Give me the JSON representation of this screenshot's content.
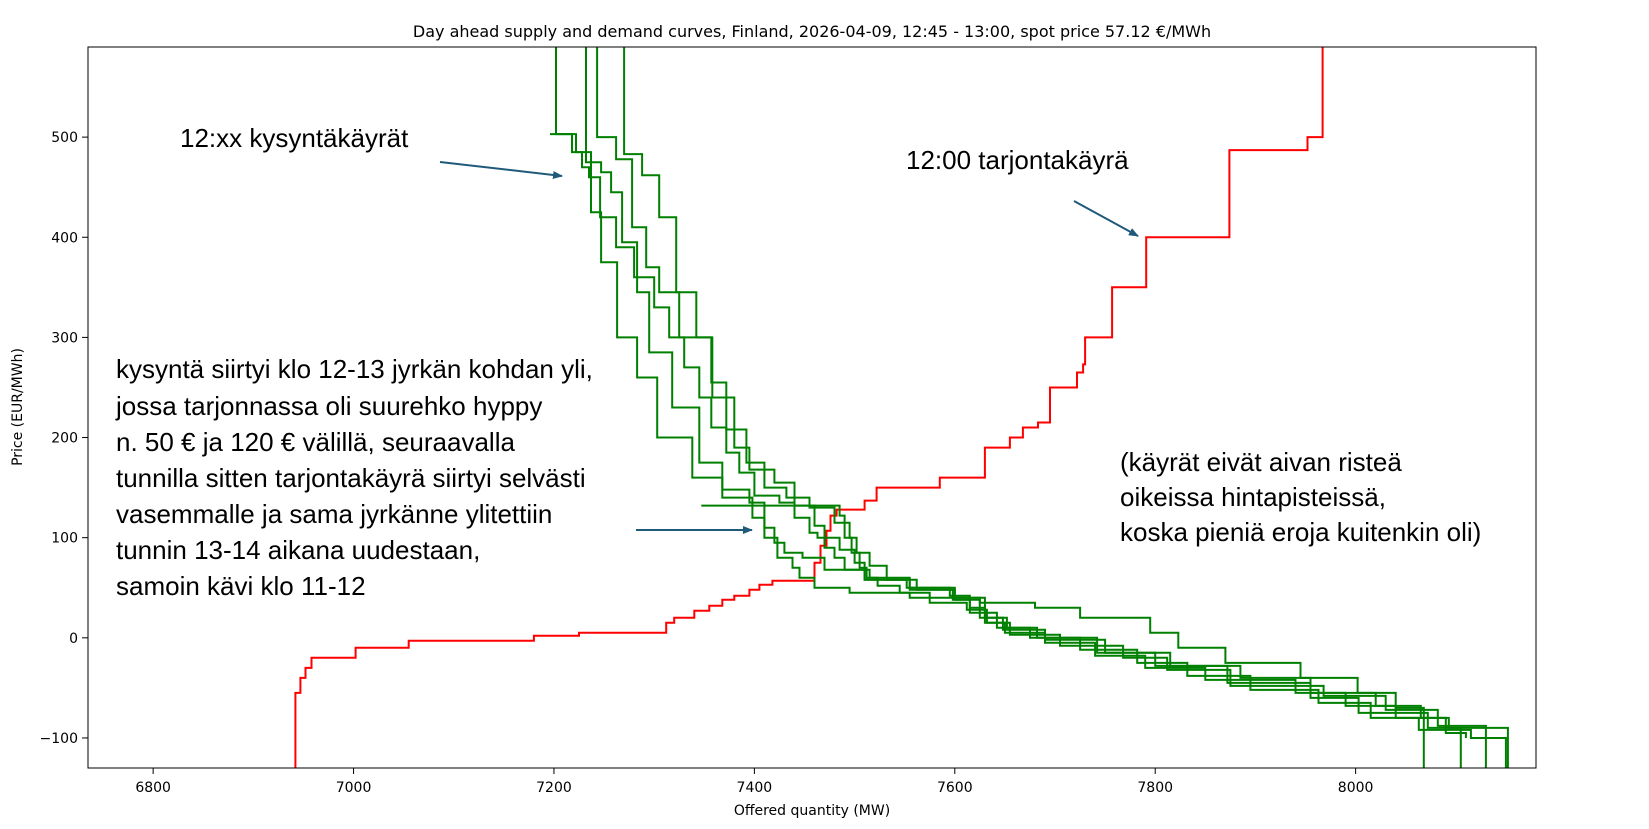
{
  "chart_data": {
    "type": "line",
    "title": "Day ahead supply and demand curves, Finland, 2026-04-09, 12:45 - 13:00, spot price 57.12 €/MWh",
    "xlabel": "Offered quantity (MW)",
    "ylabel": "Price (EUR/MWh)",
    "xlim": [
      6735,
      8180
    ],
    "ylim": [
      -130,
      590
    ],
    "x_ticks": [
      6800,
      7000,
      7200,
      7400,
      7600,
      7800,
      8000
    ],
    "y_ticks": [
      -100,
      0,
      100,
      200,
      300,
      400,
      500
    ],
    "grid": false,
    "legend": "none",
    "series": [
      {
        "color": "#ff0000",
        "step": true,
        "points": [
          [
            6942,
            -130
          ],
          [
            6942,
            -55
          ],
          [
            6947,
            -40
          ],
          [
            6952,
            -30
          ],
          [
            6958,
            -20
          ],
          [
            7002,
            -10
          ],
          [
            7055,
            -3
          ],
          [
            7180,
            2
          ],
          [
            7225,
            5
          ],
          [
            7305,
            5
          ],
          [
            7312,
            15
          ],
          [
            7320,
            20
          ],
          [
            7340,
            27
          ],
          [
            7355,
            32
          ],
          [
            7368,
            38
          ],
          [
            7380,
            42
          ],
          [
            7395,
            48
          ],
          [
            7405,
            53
          ],
          [
            7418,
            57
          ],
          [
            7455,
            57
          ],
          [
            7460,
            75
          ],
          [
            7466,
            92
          ],
          [
            7472,
            107
          ],
          [
            7476,
            122
          ],
          [
            7482,
            128
          ],
          [
            7510,
            137
          ],
          [
            7522,
            150
          ],
          [
            7585,
            160
          ],
          [
            7630,
            190
          ],
          [
            7655,
            200
          ],
          [
            7668,
            210
          ],
          [
            7683,
            215
          ],
          [
            7695,
            250
          ],
          [
            7722,
            265
          ],
          [
            7728,
            273
          ],
          [
            7730,
            300
          ],
          [
            7757,
            350
          ],
          [
            7791,
            400
          ],
          [
            7874,
            487
          ],
          [
            7952,
            500
          ],
          [
            7967,
            590
          ]
        ]
      },
      {
        "color": "#008000",
        "step": true,
        "points": [
          [
            7202,
            590
          ],
          [
            7202,
            503
          ],
          [
            7222,
            485
          ],
          [
            7237,
            425
          ],
          [
            7247,
            375
          ],
          [
            7263,
            300
          ],
          [
            7283,
            260
          ],
          [
            7303,
            200
          ],
          [
            7338,
            160
          ],
          [
            7368,
            140
          ],
          [
            7398,
            120
          ],
          [
            7410,
            100
          ],
          [
            7423,
            80
          ],
          [
            7438,
            70
          ],
          [
            7445,
            60
          ],
          [
            7460,
            50
          ],
          [
            7495,
            45
          ],
          [
            7555,
            40
          ],
          [
            7625,
            35
          ],
          [
            7680,
            30
          ],
          [
            7725,
            20
          ],
          [
            7795,
            5
          ],
          [
            7823,
            -10
          ],
          [
            7870,
            -25
          ],
          [
            7945,
            -40
          ],
          [
            8002,
            -55
          ],
          [
            8040,
            -70
          ],
          [
            8068,
            -85
          ],
          [
            8068,
            -130
          ]
        ]
      },
      {
        "color": "#008000",
        "step": true,
        "points": [
          [
            7232,
            590
          ],
          [
            7232,
            475
          ],
          [
            7247,
            465
          ],
          [
            7257,
            445
          ],
          [
            7268,
            395
          ],
          [
            7283,
            345
          ],
          [
            7295,
            285
          ],
          [
            7318,
            230
          ],
          [
            7345,
            175
          ],
          [
            7368,
            148
          ],
          [
            7395,
            135
          ],
          [
            7410,
            110
          ],
          [
            7420,
            95
          ],
          [
            7430,
            85
          ],
          [
            7448,
            80
          ],
          [
            7470,
            68
          ],
          [
            7515,
            60
          ],
          [
            7555,
            50
          ],
          [
            7600,
            40
          ],
          [
            7630,
            20
          ],
          [
            7652,
            10
          ],
          [
            7682,
            0
          ],
          [
            7742,
            -15
          ],
          [
            7800,
            -28
          ],
          [
            7872,
            -45
          ],
          [
            7955,
            -60
          ],
          [
            8003,
            -75
          ],
          [
            8072,
            -90
          ],
          [
            8105,
            -105
          ],
          [
            8105,
            -130
          ]
        ]
      },
      {
        "color": "#008000",
        "step": true,
        "points": [
          [
            7243,
            590
          ],
          [
            7243,
            500
          ],
          [
            7262,
            478
          ],
          [
            7278,
            410
          ],
          [
            7292,
            370
          ],
          [
            7305,
            345
          ],
          [
            7325,
            300
          ],
          [
            7358,
            240
          ],
          [
            7380,
            190
          ],
          [
            7395,
            168
          ],
          [
            7420,
            155
          ],
          [
            7440,
            132
          ],
          [
            7460,
            112
          ],
          [
            7470,
            100
          ],
          [
            7485,
            88
          ],
          [
            7500,
            75
          ],
          [
            7510,
            58
          ],
          [
            7552,
            50
          ],
          [
            7595,
            42
          ],
          [
            7615,
            30
          ],
          [
            7630,
            15
          ],
          [
            7655,
            3
          ],
          [
            7705,
            -8
          ],
          [
            7768,
            -20
          ],
          [
            7812,
            -32
          ],
          [
            7875,
            -48
          ],
          [
            7968,
            -58
          ],
          [
            8030,
            -72
          ],
          [
            8082,
            -88
          ],
          [
            8130,
            -100
          ],
          [
            8130,
            -130
          ]
        ]
      },
      {
        "color": "#008000",
        "step": true,
        "points": [
          [
            7270,
            590
          ],
          [
            7270,
            483
          ],
          [
            7288,
            462
          ],
          [
            7305,
            420
          ],
          [
            7322,
            345
          ],
          [
            7342,
            300
          ],
          [
            7357,
            255
          ],
          [
            7372,
            208
          ],
          [
            7392,
            175
          ],
          [
            7410,
            150
          ],
          [
            7432,
            140
          ],
          [
            7455,
            130
          ],
          [
            7480,
            115
          ],
          [
            7495,
            100
          ],
          [
            7502,
            85
          ],
          [
            7515,
            72
          ],
          [
            7532,
            58
          ],
          [
            7562,
            48
          ],
          [
            7598,
            38
          ],
          [
            7615,
            25
          ],
          [
            7642,
            10
          ],
          [
            7675,
            0
          ],
          [
            7725,
            -12
          ],
          [
            7782,
            -25
          ],
          [
            7832,
            -38
          ],
          [
            7895,
            -52
          ],
          [
            7963,
            -65
          ],
          [
            8015,
            -80
          ],
          [
            8063,
            -92
          ],
          [
            8115,
            -100
          ],
          [
            8150,
            -100
          ],
          [
            8150,
            -130
          ]
        ]
      },
      {
        "color": "#008000",
        "step": true,
        "points": [
          [
            7347,
            132
          ],
          [
            7485,
            132
          ],
          [
            7485,
            122
          ],
          [
            7490,
            100
          ],
          [
            7497,
            85
          ],
          [
            7505,
            70
          ],
          [
            7512,
            60
          ],
          [
            7523,
            52
          ],
          [
            7545,
            45
          ],
          [
            7575,
            35
          ],
          [
            7612,
            28
          ],
          [
            7632,
            15
          ],
          [
            7650,
            5
          ],
          [
            7690,
            -5
          ],
          [
            7740,
            -18
          ],
          [
            7790,
            -30
          ],
          [
            7850,
            -42
          ],
          [
            7940,
            -55
          ],
          [
            7990,
            -68
          ],
          [
            8040,
            -80
          ],
          [
            8093,
            -90
          ],
          [
            8152,
            -100
          ],
          [
            8152,
            -130
          ]
        ]
      },
      {
        "color": "#008000",
        "step": true,
        "points": [
          [
            7196,
            503
          ],
          [
            7215,
            503
          ],
          [
            7218,
            485
          ],
          [
            7228,
            470
          ],
          [
            7235,
            460
          ],
          [
            7246,
            420
          ],
          [
            7262,
            390
          ],
          [
            7280,
            360
          ],
          [
            7300,
            330
          ],
          [
            7315,
            300
          ],
          [
            7330,
            270
          ],
          [
            7345,
            240
          ],
          [
            7357,
            210
          ],
          [
            7372,
            185
          ],
          [
            7385,
            165
          ],
          [
            7400,
            142
          ],
          [
            7425,
            135
          ],
          [
            7440,
            120
          ],
          [
            7455,
            105
          ],
          [
            7463,
            100
          ],
          [
            7470,
            90
          ],
          [
            7480,
            80
          ],
          [
            7490,
            68
          ],
          [
            7510,
            58
          ],
          [
            7555,
            48
          ],
          [
            7600,
            38
          ],
          [
            7625,
            20
          ],
          [
            7648,
            8
          ],
          [
            7690,
            -2
          ],
          [
            7750,
            -15
          ],
          [
            7815,
            -28
          ],
          [
            7885,
            -40
          ],
          [
            7955,
            -55
          ],
          [
            8020,
            -68
          ],
          [
            8065,
            -80
          ],
          [
            8090,
            -95
          ],
          [
            8110,
            -100
          ]
        ]
      }
    ],
    "annotations": [
      {
        "lines": [
          "12:xx kysyntäkäyrät"
        ]
      },
      {
        "lines": [
          "12:00 tarjontakäyrä"
        ]
      },
      {
        "lines": [
          "kysyntä siirtyi klo 12-13 jyrkän kohdan yli,",
          "jossa tarjonnassa oli suurehko hyppy",
          "n. 50 € ja 120 € välillä, seuraavalla",
          "tunnilla sitten tarjontakäyrä siirtyi selvästi",
          "vasemmalle ja sama jyrkänne ylitettiin",
          "tunnin 13-14 aikana uudestaan,",
          "samoin kävi klo 11-12"
        ]
      },
      {
        "lines": [
          "(käyrät eivät aivan risteä",
          "oikeissa hintapisteissä,",
          "koska pieniä eroja kuitenkin oli)"
        ]
      }
    ]
  }
}
